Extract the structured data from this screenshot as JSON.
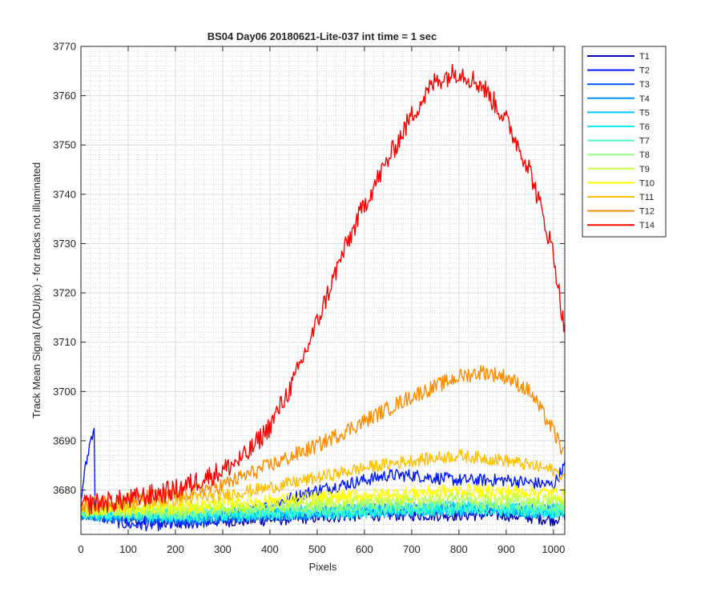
{
  "chart_data": {
    "type": "line",
    "title": "BS04 Day06 20180621-Lite-037 int time = 1 sec",
    "xlabel": "Pixels",
    "ylabel": "Track Mean Signal (ADU/pix) - for tracks not illuminated",
    "xlim": [
      0,
      1024
    ],
    "ylim": [
      3671,
      3770
    ],
    "xticks": [
      0,
      100,
      200,
      300,
      400,
      500,
      600,
      700,
      800,
      900,
      1000
    ],
    "yticks": [
      3680,
      3690,
      3700,
      3710,
      3720,
      3730,
      3740,
      3750,
      3760,
      3770
    ],
    "grid": true,
    "minor_grid": true,
    "legend_position": "outside-top-right",
    "series": [
      {
        "name": "T1",
        "color": "#0000b3",
        "x": [
          0,
          200,
          400,
          600,
          800,
          900,
          1000,
          1024
        ],
        "values": [
          3675,
          3673.5,
          3674,
          3675,
          3675,
          3675,
          3674,
          3675
        ]
      },
      {
        "name": "T2",
        "color": "#0019ff",
        "x": [
          0,
          5,
          20,
          28,
          30,
          100,
          200,
          300,
          400,
          500,
          600,
          650,
          700,
          800,
          900,
          1000,
          1024
        ],
        "values": [
          3677,
          3682,
          3690,
          3693,
          3675,
          3673,
          3673,
          3674,
          3677,
          3680,
          3682,
          3683,
          3683,
          3682,
          3682,
          3681,
          3685
        ]
      },
      {
        "name": "T3",
        "color": "#0050ff",
        "x": [
          0,
          200,
          400,
          600,
          800,
          1000,
          1024
        ],
        "values": [
          3675,
          3674,
          3675,
          3676,
          3676,
          3676,
          3676
        ]
      },
      {
        "name": "T4",
        "color": "#0090ff",
        "x": [
          0,
          200,
          400,
          600,
          800,
          1000,
          1024
        ],
        "values": [
          3675,
          3674.5,
          3675,
          3675.5,
          3676,
          3675.5,
          3676
        ]
      },
      {
        "name": "T5",
        "color": "#00c8ff",
        "x": [
          0,
          200,
          400,
          600,
          800,
          1000,
          1024
        ],
        "values": [
          3675.5,
          3675,
          3675.5,
          3676,
          3676.5,
          3676,
          3676.5
        ]
      },
      {
        "name": "T6",
        "color": "#10f0f0",
        "x": [
          0,
          200,
          400,
          600,
          800,
          1000,
          1024
        ],
        "values": [
          3675,
          3674.5,
          3675,
          3675.5,
          3676,
          3675.5,
          3676
        ]
      },
      {
        "name": "T7",
        "color": "#50ffc0",
        "x": [
          0,
          200,
          400,
          600,
          800,
          1000,
          1024
        ],
        "values": [
          3675.5,
          3675,
          3675.5,
          3676,
          3676.5,
          3676,
          3676
        ]
      },
      {
        "name": "T8",
        "color": "#90ff80",
        "x": [
          0,
          200,
          400,
          600,
          800,
          1000,
          1024
        ],
        "values": [
          3675.5,
          3675.5,
          3676.5,
          3677,
          3677.5,
          3677,
          3677
        ]
      },
      {
        "name": "T9",
        "color": "#c8ff40",
        "x": [
          0,
          200,
          400,
          600,
          800,
          1000,
          1024
        ],
        "values": [
          3676,
          3676,
          3677,
          3678,
          3678.5,
          3678,
          3678
        ]
      },
      {
        "name": "T10",
        "color": "#ffff00",
        "x": [
          0,
          200,
          400,
          600,
          800,
          1000,
          1024
        ],
        "values": [
          3676,
          3676.5,
          3678,
          3679,
          3680,
          3679.5,
          3679
        ]
      },
      {
        "name": "T11",
        "color": "#ffc000",
        "x": [
          0,
          100,
          200,
          300,
          400,
          500,
          600,
          700,
          800,
          900,
          1000,
          1024
        ],
        "values": [
          3677,
          3677,
          3678,
          3679,
          3680.5,
          3682.5,
          3684.5,
          3686,
          3687,
          3686,
          3684,
          3682.5
        ]
      },
      {
        "name": "T12",
        "color": "#ff8c00",
        "x": [
          0,
          100,
          200,
          300,
          400,
          500,
          600,
          700,
          750,
          800,
          850,
          900,
          950,
          1000,
          1024
        ],
        "values": [
          3677,
          3678,
          3679,
          3681,
          3685,
          3689,
          3694,
          3699,
          3701,
          3703,
          3704,
          3703,
          3700,
          3692,
          3687
        ]
      },
      {
        "name": "T14",
        "color": "#ff0000",
        "x": [
          0,
          100,
          200,
          300,
          350,
          400,
          450,
          500,
          550,
          600,
          650,
          700,
          750,
          800,
          850,
          900,
          950,
          1000,
          1024
        ],
        "values": [
          3677,
          3678,
          3680,
          3684,
          3687,
          3693,
          3702,
          3714,
          3727,
          3738,
          3747,
          3756,
          3763,
          3765,
          3762,
          3755,
          3745,
          3728,
          3712
        ]
      }
    ]
  }
}
